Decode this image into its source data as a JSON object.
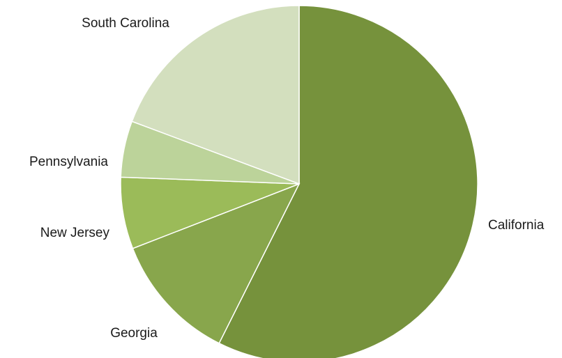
{
  "chart_data": {
    "type": "pie",
    "title": "",
    "start_angle_deg": 0,
    "direction": "clockwise",
    "slices": [
      {
        "label": "California",
        "value": 57.4,
        "color": "#76923c"
      },
      {
        "label": "Georgia",
        "value": 11.7,
        "color": "#88a64c"
      },
      {
        "label": "New Jersey",
        "value": 6.5,
        "color": "#9bbb59"
      },
      {
        "label": "Pennsylvania",
        "value": 5.1,
        "color": "#bcd39a"
      },
      {
        "label": "South Carolina",
        "value": 19.3,
        "color": "#d3dfbe"
      }
    ],
    "legend": "none"
  }
}
